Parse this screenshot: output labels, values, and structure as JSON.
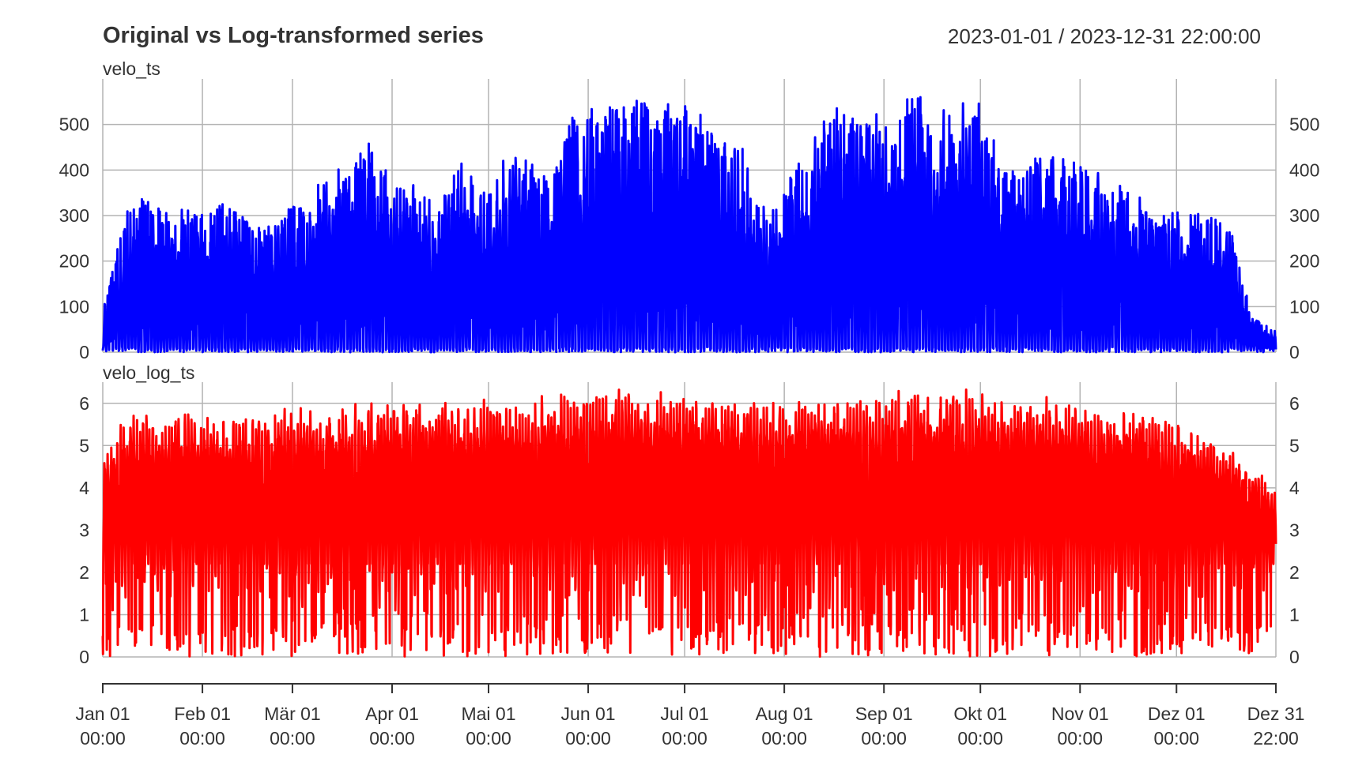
{
  "chart_data": {
    "type": "line",
    "title": "Original vs Log-transformed series",
    "date_range": "2023-01-01 / 2023-12-31 22:00:00",
    "x_range": [
      "2023-01-01 00:00",
      "2023-12-31 22:00"
    ],
    "x_ticks": [
      {
        "date": "2023-01-01",
        "label1": "Jan 01",
        "label2": "00:00"
      },
      {
        "date": "2023-02-01",
        "label1": "Feb 01",
        "label2": "00:00"
      },
      {
        "date": "2023-03-01",
        "label1": "Mär 01",
        "label2": "00:00"
      },
      {
        "date": "2023-04-01",
        "label1": "Apr 01",
        "label2": "00:00"
      },
      {
        "date": "2023-05-01",
        "label1": "Mai 01",
        "label2": "00:00"
      },
      {
        "date": "2023-06-01",
        "label1": "Jun 01",
        "label2": "00:00"
      },
      {
        "date": "2023-07-01",
        "label1": "Jul 01",
        "label2": "00:00"
      },
      {
        "date": "2023-08-01",
        "label1": "Aug 01",
        "label2": "00:00"
      },
      {
        "date": "2023-09-01",
        "label1": "Sep 01",
        "label2": "00:00"
      },
      {
        "date": "2023-10-01",
        "label1": "Okt 01",
        "label2": "00:00"
      },
      {
        "date": "2023-11-01",
        "label1": "Nov 01",
        "label2": "00:00"
      },
      {
        "date": "2023-12-01",
        "label1": "Dez 01",
        "label2": "00:00"
      },
      {
        "date": "2023-12-31T22:00",
        "label1": "Dez 31",
        "label2": "22:00"
      }
    ],
    "grid": true,
    "panels": [
      {
        "name": "velo_ts",
        "color": "#0000ff",
        "ylim": [
          0,
          600
        ],
        "yticks": [
          0,
          100,
          200,
          300,
          400,
          500
        ],
        "daily_peak_envelope": [
          {
            "date": "2023-01-01",
            "value": 100
          },
          {
            "date": "2023-01-05",
            "value": 215
          },
          {
            "date": "2023-01-09",
            "value": 350
          },
          {
            "date": "2023-01-15",
            "value": 335
          },
          {
            "date": "2023-01-20",
            "value": 310
          },
          {
            "date": "2023-01-27",
            "value": 315
          },
          {
            "date": "2023-02-03",
            "value": 310
          },
          {
            "date": "2023-02-10",
            "value": 340
          },
          {
            "date": "2023-02-17",
            "value": 265
          },
          {
            "date": "2023-02-24",
            "value": 300
          },
          {
            "date": "2023-03-04",
            "value": 335
          },
          {
            "date": "2023-03-11",
            "value": 390
          },
          {
            "date": "2023-03-18",
            "value": 410
          },
          {
            "date": "2023-03-25",
            "value": 465
          },
          {
            "date": "2023-04-01",
            "value": 385
          },
          {
            "date": "2023-04-08",
            "value": 380
          },
          {
            "date": "2023-04-15",
            "value": 315
          },
          {
            "date": "2023-04-22",
            "value": 430
          },
          {
            "date": "2023-04-29",
            "value": 350
          },
          {
            "date": "2023-05-06",
            "value": 430
          },
          {
            "date": "2023-05-13",
            "value": 435
          },
          {
            "date": "2023-05-20",
            "value": 380
          },
          {
            "date": "2023-05-27",
            "value": 540
          },
          {
            "date": "2023-06-03",
            "value": 535
          },
          {
            "date": "2023-06-10",
            "value": 590
          },
          {
            "date": "2023-06-14",
            "value": 595
          },
          {
            "date": "2023-06-20",
            "value": 545
          },
          {
            "date": "2023-06-27",
            "value": 550
          },
          {
            "date": "2023-07-04",
            "value": 535
          },
          {
            "date": "2023-07-11",
            "value": 500
          },
          {
            "date": "2023-07-18",
            "value": 470
          },
          {
            "date": "2023-07-25",
            "value": 325
          },
          {
            "date": "2023-08-01",
            "value": 365
          },
          {
            "date": "2023-08-08",
            "value": 445
          },
          {
            "date": "2023-08-15",
            "value": 535
          },
          {
            "date": "2023-08-20",
            "value": 555
          },
          {
            "date": "2023-08-27",
            "value": 540
          },
          {
            "date": "2023-09-03",
            "value": 510
          },
          {
            "date": "2023-09-10",
            "value": 575
          },
          {
            "date": "2023-09-17",
            "value": 535
          },
          {
            "date": "2023-09-24",
            "value": 540
          },
          {
            "date": "2023-10-01",
            "value": 570
          },
          {
            "date": "2023-10-08",
            "value": 410
          },
          {
            "date": "2023-10-15",
            "value": 415
          },
          {
            "date": "2023-10-22",
            "value": 440
          },
          {
            "date": "2023-10-29",
            "value": 420
          },
          {
            "date": "2023-11-05",
            "value": 405
          },
          {
            "date": "2023-11-12",
            "value": 370
          },
          {
            "date": "2023-11-19",
            "value": 350
          },
          {
            "date": "2023-11-26",
            "value": 315
          },
          {
            "date": "2023-12-03",
            "value": 305
          },
          {
            "date": "2023-12-10",
            "value": 305
          },
          {
            "date": "2023-12-17",
            "value": 300
          },
          {
            "date": "2023-12-24",
            "value": 90
          },
          {
            "date": "2023-12-31",
            "value": 50
          }
        ]
      },
      {
        "name": "velo_log_ts",
        "color": "#ff0000",
        "ylim": [
          0,
          6.5
        ],
        "yticks": [
          0,
          1,
          2,
          3,
          4,
          5,
          6
        ],
        "daily_peak_envelope": [
          {
            "date": "2023-01-01",
            "value": 4.7
          },
          {
            "date": "2023-01-05",
            "value": 5.4
          },
          {
            "date": "2023-01-10",
            "value": 5.85
          },
          {
            "date": "2023-02-01",
            "value": 5.75
          },
          {
            "date": "2023-03-01",
            "value": 5.9
          },
          {
            "date": "2023-04-01",
            "value": 6.05
          },
          {
            "date": "2023-05-01",
            "value": 6.1
          },
          {
            "date": "2023-06-01",
            "value": 6.3
          },
          {
            "date": "2023-06-14",
            "value": 6.38
          },
          {
            "date": "2023-07-01",
            "value": 6.3
          },
          {
            "date": "2023-08-01",
            "value": 6.1
          },
          {
            "date": "2023-09-01",
            "value": 6.35
          },
          {
            "date": "2023-10-01",
            "value": 6.35
          },
          {
            "date": "2023-11-01",
            "value": 6.05
          },
          {
            "date": "2023-12-01",
            "value": 5.75
          },
          {
            "date": "2023-12-25",
            "value": 4.6
          },
          {
            "date": "2023-12-31",
            "value": 4.0
          }
        ]
      }
    ]
  }
}
